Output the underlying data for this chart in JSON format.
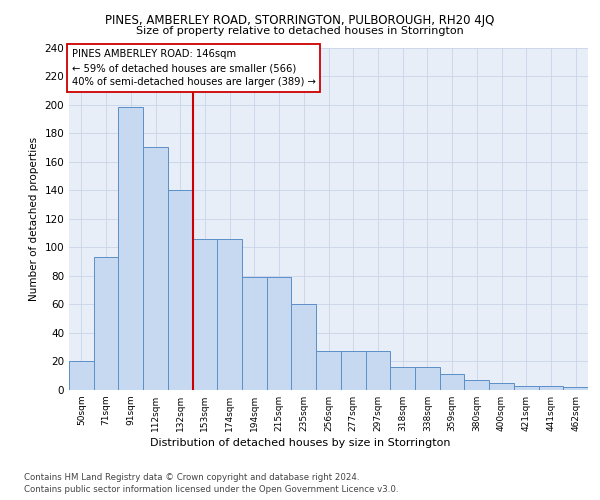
{
  "title": "PINES, AMBERLEY ROAD, STORRINGTON, PULBOROUGH, RH20 4JQ",
  "subtitle": "Size of property relative to detached houses in Storrington",
  "xlabel": "Distribution of detached houses by size in Storrington",
  "ylabel": "Number of detached properties",
  "categories": [
    "50sqm",
    "71sqm",
    "91sqm",
    "112sqm",
    "132sqm",
    "153sqm",
    "174sqm",
    "194sqm",
    "215sqm",
    "235sqm",
    "256sqm",
    "277sqm",
    "297sqm",
    "318sqm",
    "338sqm",
    "359sqm",
    "380sqm",
    "400sqm",
    "421sqm",
    "441sqm",
    "462sqm"
  ],
  "values": [
    20,
    93,
    198,
    170,
    140,
    106,
    106,
    79,
    79,
    60,
    27,
    27,
    27,
    16,
    16,
    11,
    7,
    5,
    3,
    3,
    2
  ],
  "bar_color": "#c6d9f0",
  "bar_edge_color": "#5b8fc8",
  "grid_color": "#c8d4e8",
  "background_color": "#e8eef8",
  "vline_color": "#cc0000",
  "vline_pos": 4.5,
  "annotation_text": "PINES AMBERLEY ROAD: 146sqm\n← 59% of detached houses are smaller (566)\n40% of semi-detached houses are larger (389) →",
  "annotation_box_color": "#ffffff",
  "annotation_box_edge": "#cc0000",
  "ylim": [
    0,
    240
  ],
  "yticks": [
    0,
    20,
    40,
    60,
    80,
    100,
    120,
    140,
    160,
    180,
    200,
    220,
    240
  ],
  "footer1": "Contains HM Land Registry data © Crown copyright and database right 2024.",
  "footer2": "Contains public sector information licensed under the Open Government Licence v3.0."
}
